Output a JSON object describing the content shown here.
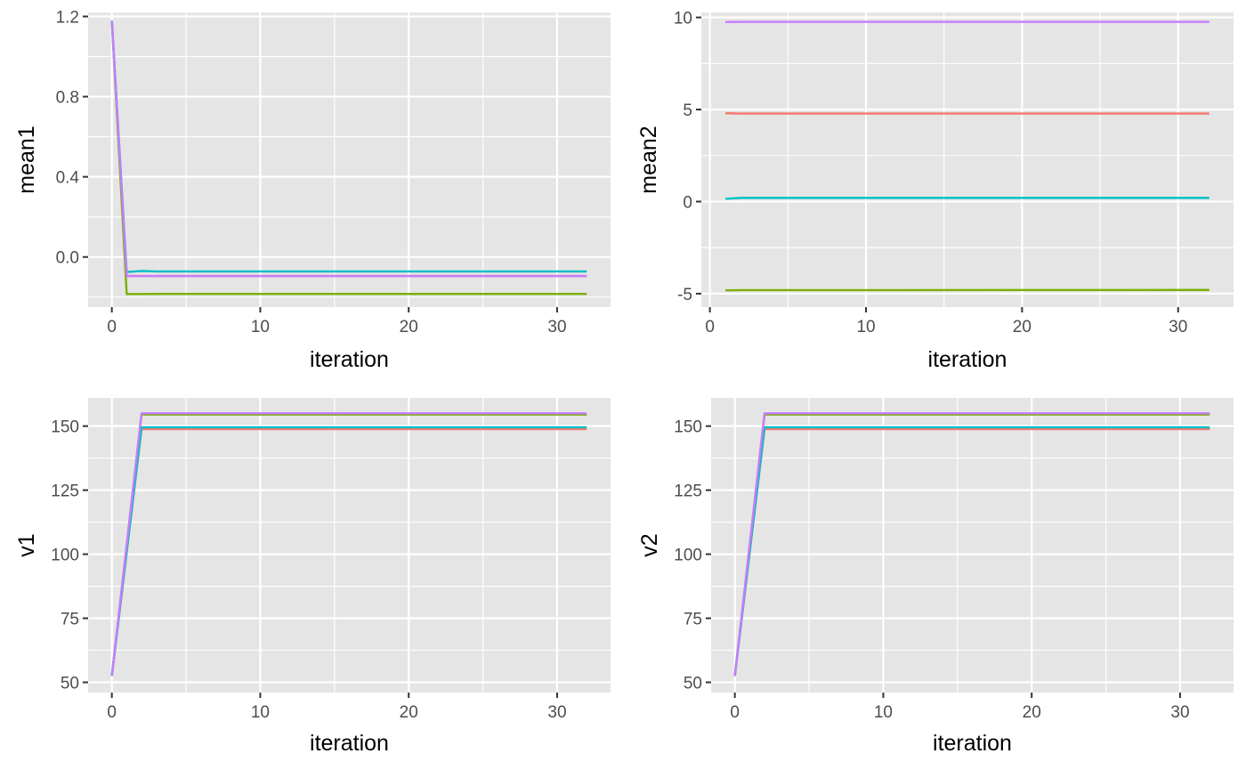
{
  "chart_data": [
    {
      "type": "line",
      "title": "",
      "xlabel": "iteration",
      "ylabel": "mean1",
      "xlim": [
        -1.6,
        33.6
      ],
      "ylim": [
        -0.25,
        1.22
      ],
      "x_ticks": [
        0,
        10,
        20,
        30
      ],
      "x_tick_labels": [
        "0",
        "10",
        "20",
        "30"
      ],
      "y_ticks": [
        0.0,
        0.4,
        0.8,
        1.2
      ],
      "y_tick_labels": [
        "0.0",
        "0.4",
        "0.8",
        "1.2"
      ],
      "grid": true,
      "series": [
        {
          "color": "#f8766d",
          "x": [
            0,
            1,
            2,
            3,
            32
          ],
          "y": [
            1.18,
            -0.095,
            -0.095,
            -0.095,
            -0.095
          ]
        },
        {
          "color": "#7cae00",
          "x": [
            0,
            1,
            2,
            3,
            32
          ],
          "y": [
            1.18,
            -0.185,
            -0.185,
            -0.184,
            -0.184
          ]
        },
        {
          "color": "#00bfc4",
          "x": [
            0,
            1,
            2,
            3,
            32
          ],
          "y": [
            1.18,
            -0.075,
            -0.07,
            -0.072,
            -0.072
          ]
        },
        {
          "color": "#c77cff",
          "x": [
            0,
            1,
            2,
            3,
            32
          ],
          "y": [
            1.18,
            -0.095,
            -0.095,
            -0.095,
            -0.095
          ]
        }
      ]
    },
    {
      "type": "line",
      "title": "",
      "xlabel": "iteration",
      "ylabel": "mean2",
      "xlim": [
        -0.55,
        33.55
      ],
      "ylim": [
        -5.73,
        10.27
      ],
      "x_ticks": [
        0,
        10,
        20,
        30
      ],
      "x_tick_labels": [
        "0",
        "10",
        "20",
        "30"
      ],
      "y_ticks": [
        -5,
        0,
        5,
        10
      ],
      "y_tick_labels": [
        "-5",
        "0",
        "5",
        "10"
      ],
      "grid": true,
      "series": [
        {
          "color": "#f8766d",
          "x": [
            1,
            2,
            32
          ],
          "y": [
            4.8,
            4.78,
            4.78
          ]
        },
        {
          "color": "#7cae00",
          "x": [
            1,
            2,
            32
          ],
          "y": [
            -4.82,
            -4.81,
            -4.8
          ]
        },
        {
          "color": "#00bfc4",
          "x": [
            1,
            2,
            32
          ],
          "y": [
            0.15,
            0.2,
            0.2
          ]
        },
        {
          "color": "#c77cff",
          "x": [
            1,
            2,
            32
          ],
          "y": [
            9.75,
            9.76,
            9.76
          ]
        }
      ]
    },
    {
      "type": "line",
      "title": "",
      "xlabel": "iteration",
      "ylabel": "v1",
      "xlim": [
        -1.6,
        33.6
      ],
      "ylim": [
        46,
        161
      ],
      "x_ticks": [
        0,
        10,
        20,
        30
      ],
      "x_tick_labels": [
        "0",
        "10",
        "20",
        "30"
      ],
      "y_ticks": [
        50,
        75,
        100,
        125,
        150
      ],
      "y_tick_labels": [
        "50",
        "75",
        "100",
        "125",
        "150"
      ],
      "grid": true,
      "series": [
        {
          "color": "#f8766d",
          "x": [
            0,
            2,
            32
          ],
          "y": [
            52.5,
            148.8,
            148.8
          ]
        },
        {
          "color": "#7cae00",
          "x": [
            0,
            2,
            32
          ],
          "y": [
            52.5,
            154.5,
            154.5
          ]
        },
        {
          "color": "#00bfc4",
          "x": [
            0,
            2,
            32
          ],
          "y": [
            52.5,
            149.5,
            149.5
          ]
        },
        {
          "color": "#c77cff",
          "x": [
            0,
            2,
            32
          ],
          "y": [
            52.5,
            155.0,
            155.0
          ]
        }
      ]
    },
    {
      "type": "line",
      "title": "",
      "xlabel": "iteration",
      "ylabel": "v2",
      "xlim": [
        -1.6,
        33.6
      ],
      "ylim": [
        46,
        161
      ],
      "x_ticks": [
        0,
        10,
        20,
        30
      ],
      "x_tick_labels": [
        "0",
        "10",
        "20",
        "30"
      ],
      "y_ticks": [
        50,
        75,
        100,
        125,
        150
      ],
      "y_tick_labels": [
        "50",
        "75",
        "100",
        "125",
        "150"
      ],
      "grid": true,
      "series": [
        {
          "color": "#f8766d",
          "x": [
            0,
            2,
            32
          ],
          "y": [
            52.5,
            148.8,
            148.8
          ]
        },
        {
          "color": "#7cae00",
          "x": [
            0,
            2,
            32
          ],
          "y": [
            52.5,
            154.5,
            154.5
          ]
        },
        {
          "color": "#00bfc4",
          "x": [
            0,
            2,
            32
          ],
          "y": [
            52.5,
            149.5,
            149.5
          ]
        },
        {
          "color": "#c77cff",
          "x": [
            0,
            2,
            32
          ],
          "y": [
            52.5,
            155.0,
            155.0
          ]
        }
      ]
    }
  ]
}
